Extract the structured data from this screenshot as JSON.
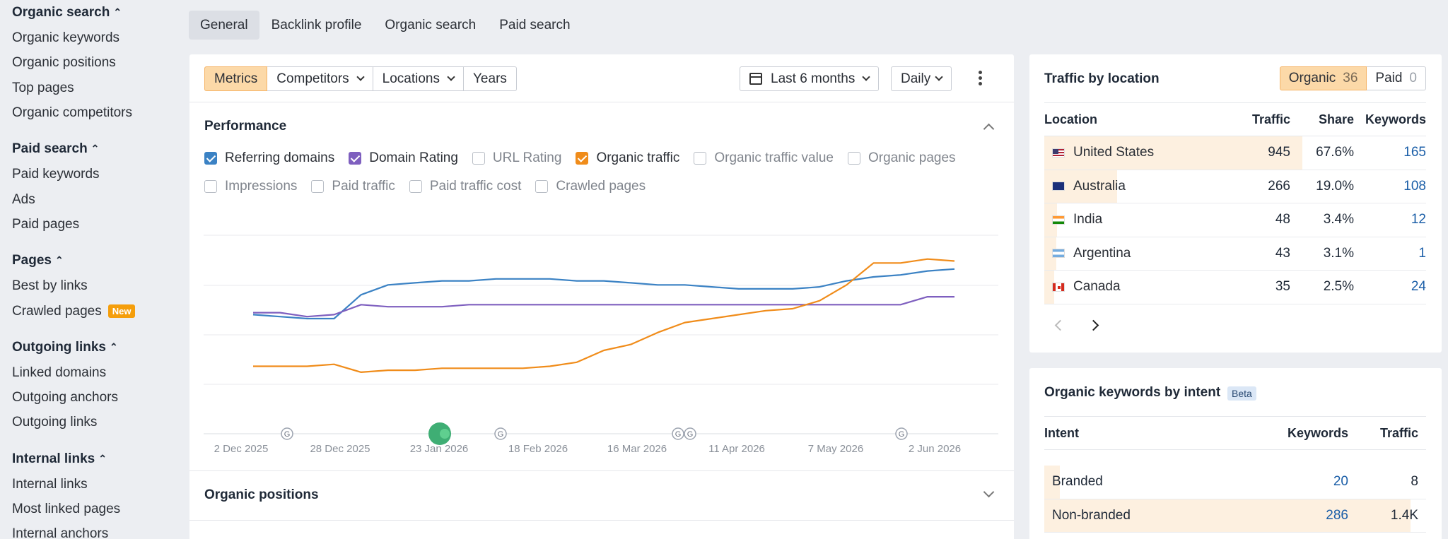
{
  "sidebar": {
    "sections": [
      {
        "title": "Organic search",
        "items": [
          "Organic keywords",
          "Organic positions",
          "Top pages",
          "Organic competitors"
        ]
      },
      {
        "title": "Paid search",
        "items": [
          "Paid keywords",
          "Ads",
          "Paid pages"
        ]
      },
      {
        "title": "Pages",
        "items": [
          "Best by links",
          "Crawled pages"
        ]
      },
      {
        "title": "Outgoing links",
        "items": [
          "Linked domains",
          "Outgoing anchors",
          "Outgoing links"
        ]
      },
      {
        "title": "Internal links",
        "items": [
          "Internal links",
          "Most linked pages",
          "Internal anchors"
        ]
      }
    ],
    "new_badge": "New"
  },
  "top_tabs": [
    "General",
    "Backlink profile",
    "Organic search",
    "Paid search"
  ],
  "toolbar": {
    "segments": [
      "Metrics",
      "Competitors",
      "Locations",
      "Years"
    ],
    "date_range": "Last 6 months",
    "interval": "Daily"
  },
  "performance": {
    "title": "Performance",
    "checkboxes_row1": [
      {
        "label": "Referring domains",
        "checked": true,
        "color": "#3b82c4"
      },
      {
        "label": "Domain Rating",
        "checked": true,
        "color": "#7e5fbf"
      },
      {
        "label": "URL Rating",
        "checked": false
      },
      {
        "label": "Organic traffic",
        "checked": true,
        "color": "#f08c1a"
      },
      {
        "label": "Organic traffic value",
        "checked": false
      },
      {
        "label": "Organic pages",
        "checked": false
      }
    ],
    "checkboxes_row2": [
      {
        "label": "Impressions",
        "checked": false
      },
      {
        "label": "Paid traffic",
        "checked": false
      },
      {
        "label": "Paid traffic cost",
        "checked": false
      },
      {
        "label": "Crawled pages",
        "checked": false
      }
    ]
  },
  "chart_data": {
    "type": "line",
    "x_ticks": [
      "2 Dec 2025",
      "28 Dec 2025",
      "23 Jan 2026",
      "18 Feb 2026",
      "16 Mar 2026",
      "11 Apr 2026",
      "7 May 2026",
      "2 Jun 2026"
    ],
    "annotation_marker": "G",
    "grid": true,
    "series": [
      {
        "name": "Referring domains",
        "color": "#3b82c4",
        "x": [
          0,
          1,
          2,
          3,
          4,
          5,
          6,
          7,
          8,
          9,
          10,
          11,
          12,
          13,
          14,
          15,
          16,
          17,
          18,
          19,
          20,
          21,
          22,
          23,
          24,
          25,
          26
        ],
        "values": [
          60,
          59,
          58,
          58,
          70,
          75,
          76,
          77,
          77,
          78,
          78,
          78,
          77,
          77,
          76,
          75,
          75,
          74,
          73,
          73,
          73,
          74,
          77,
          79,
          80,
          82,
          83
        ]
      },
      {
        "name": "Domain Rating",
        "color": "#7e5fbf",
        "x": [
          0,
          1,
          2,
          3,
          4,
          5,
          6,
          7,
          8,
          9,
          10,
          11,
          12,
          13,
          14,
          15,
          16,
          17,
          18,
          19,
          20,
          21,
          22,
          23,
          24,
          25,
          26
        ],
        "values": [
          61,
          61,
          59,
          60,
          65,
          64,
          64,
          64,
          65,
          65,
          65,
          65,
          65,
          65,
          65,
          65,
          65,
          65,
          65,
          65,
          65,
          65,
          65,
          65,
          65,
          69,
          69
        ]
      },
      {
        "name": "Organic traffic",
        "color": "#f08c1a",
        "x": [
          0,
          1,
          2,
          3,
          4,
          5,
          6,
          7,
          8,
          9,
          10,
          11,
          12,
          13,
          14,
          15,
          16,
          17,
          18,
          19,
          20,
          21,
          22,
          23,
          24,
          25,
          26
        ],
        "values": [
          34,
          34,
          34,
          35,
          31,
          32,
          32,
          33,
          33,
          33,
          33,
          34,
          36,
          42,
          45,
          51,
          56,
          58,
          60,
          62,
          63,
          67,
          75,
          86,
          86,
          88,
          87
        ]
      }
    ]
  },
  "organic_positions": {
    "title": "Organic positions"
  },
  "traffic_by_location": {
    "title": "Traffic by location",
    "toggle": [
      {
        "label": "Organic",
        "count": "36"
      },
      {
        "label": "Paid",
        "count": "0"
      }
    ],
    "columns": [
      "Location",
      "Traffic",
      "Share",
      "Keywords"
    ],
    "rows": [
      {
        "flag": "us-flag-icon",
        "location": "United States",
        "traffic": "945",
        "share": "67.6%",
        "share_value": 67.6,
        "keywords": "165"
      },
      {
        "flag": "au-flag-icon",
        "location": "Australia",
        "traffic": "266",
        "share": "19.0%",
        "share_value": 19.0,
        "keywords": "108"
      },
      {
        "flag": "in-flag-icon",
        "location": "India",
        "traffic": "48",
        "share": "3.4%",
        "share_value": 3.4,
        "keywords": "12"
      },
      {
        "flag": "ar-flag-icon",
        "location": "Argentina",
        "traffic": "43",
        "share": "3.1%",
        "share_value": 3.1,
        "keywords": "1"
      },
      {
        "flag": "ca-flag-icon",
        "location": "Canada",
        "traffic": "35",
        "share": "2.5%",
        "share_value": 2.5,
        "keywords": "24"
      }
    ]
  },
  "keywords_by_intent": {
    "title": "Organic keywords by intent",
    "badge": "Beta",
    "columns": [
      "Intent",
      "Keywords",
      "Traffic"
    ],
    "rows": [
      {
        "intent": "Branded",
        "keywords": "20",
        "traffic": "8",
        "share_value": 4
      },
      {
        "intent": "Non-branded",
        "keywords": "286",
        "traffic": "1.4K",
        "share_value": 96
      }
    ]
  }
}
